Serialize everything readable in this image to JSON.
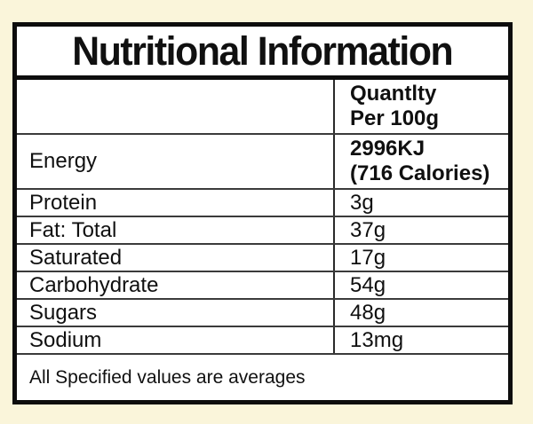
{
  "label": {
    "title": "Nutritional Information",
    "column_header": {
      "line1": "Quantlty",
      "line2": "Per 100g"
    },
    "rows": [
      {
        "name": "Energy",
        "value": "2996KJ",
        "value2": "(716 Calories)"
      },
      {
        "name": "Protein",
        "value": "3g"
      },
      {
        "name": "Fat: Total",
        "value": "37g"
      },
      {
        "name": "Saturated",
        "value": "17g"
      },
      {
        "name": "Carbohydrate",
        "value": "54g"
      },
      {
        "name": "Sugars",
        "value": "48g"
      },
      {
        "name": "Sodium",
        "value": "13mg"
      }
    ],
    "footer": "All Specified values are averages",
    "colors": {
      "background": "#FAF5DA",
      "panel": "#FFFFFF",
      "border": "#0D0D0D",
      "thin_line": "#3B3B3B",
      "text": "#101010"
    }
  }
}
